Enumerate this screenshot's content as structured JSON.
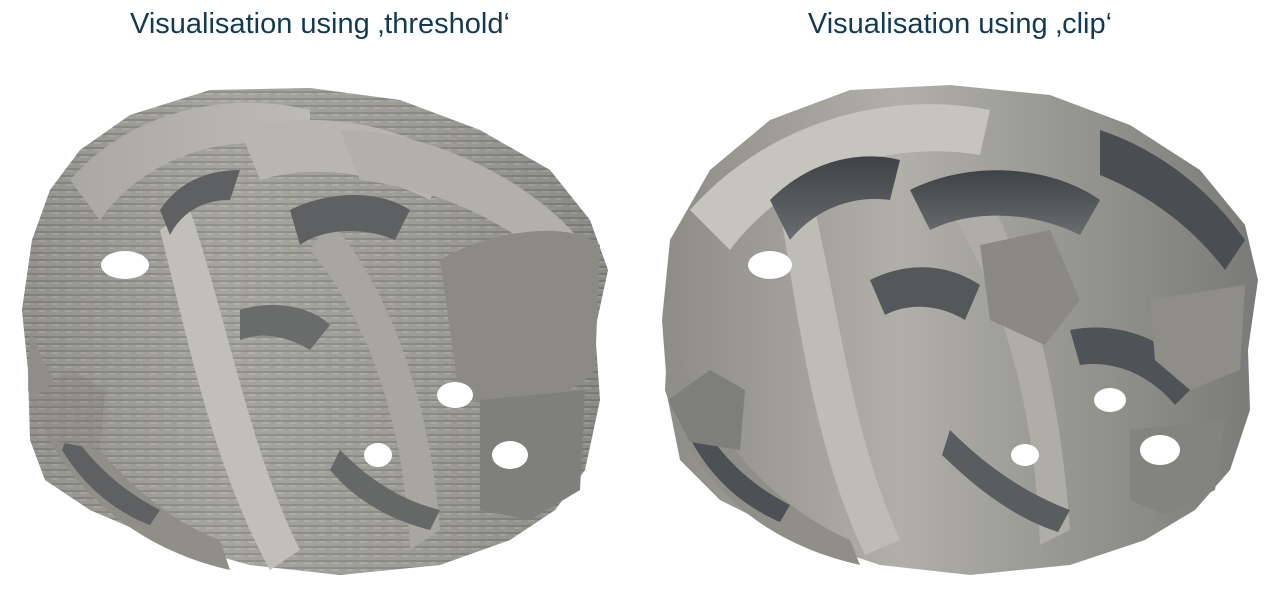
{
  "panels": [
    {
      "title": "Visualisation using ‚threshold‘"
    },
    {
      "title": "Visualisation using ‚clip‘"
    }
  ],
  "colors": {
    "title": "#123a52",
    "surface_light": "#b9b8b1",
    "surface_mid": "#8e8d88",
    "surface_dark": "#5c5d5e",
    "background": "#ffffff"
  }
}
